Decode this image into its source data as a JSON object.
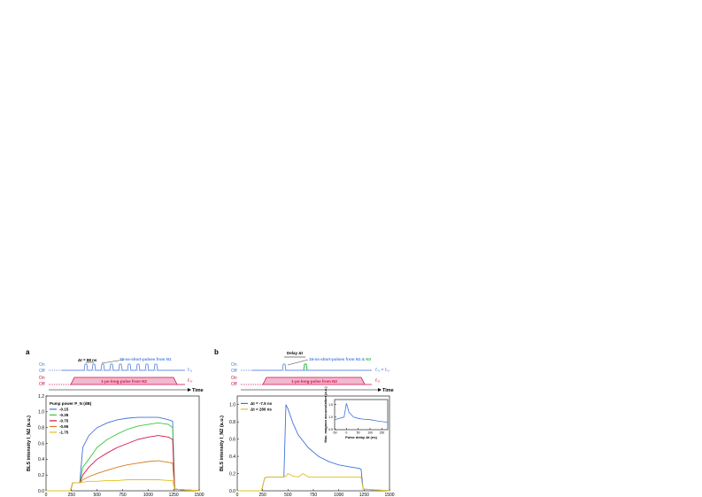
{
  "panel_a": {
    "letter": "a",
    "pulse_diagram": {
      "on_label": "On",
      "off_label": "Off",
      "delta_t_label": "Δt = 88 ns",
      "short_pulse_label": "15-ns-short-pulses from N1",
      "long_pulse_label": "1-μs-long-pulse from N2",
      "f_n1": "fₙ₁",
      "f_n2": "fₙ₂",
      "time_label": "Time",
      "colors": {
        "short": "#4a7fe0",
        "long": "#d0144a",
        "long_fill": "#f2b8cf"
      }
    }
  },
  "panel_b": {
    "letter": "b",
    "pulse_diagram": {
      "on_label": "On",
      "off_label": "Off",
      "delay_label": "Delay Δt",
      "short_pulse_label": "15-ns-short-pulses from N1 & ",
      "short_pulse_label_n3": "N3",
      "long_pulse_label": "1-μs-long-pulse from N2",
      "f_n1": "fₙ₁ = fₙ₃",
      "f_n2": "fₙ₂",
      "time_label": "Time",
      "colors": {
        "short": "#4a7fe0",
        "n3": "#2fb84a",
        "long": "#d0144a",
        "long_fill": "#f2b8cf"
      }
    },
    "inset": {
      "xlabel": "Pulse delay Δt (ns)",
      "ylabel": "Max. magnon accumulation (a.u.)",
      "x_ticks": [
        "-50",
        "0",
        "50",
        "100",
        "150"
      ],
      "y_ticks": [
        "0.5",
        "1.0",
        "1.5"
      ]
    }
  },
  "chart_data": [
    {
      "type": "line",
      "panel": "a",
      "xlabel": "Time t (ns)",
      "ylabel": "BLS intensity I_N2 (a.u.)",
      "xlim": [
        0,
        1500
      ],
      "ylim": [
        0,
        1.2
      ],
      "x_ticks": [
        0,
        250,
        500,
        750,
        1000,
        1250,
        1500
      ],
      "y_ticks": [
        0.0,
        0.2,
        0.4,
        0.6,
        0.8,
        1.0,
        1.2
      ],
      "legend_title": "Pump power P_N (dB)",
      "legend_position": "top-left",
      "series": [
        {
          "name": "-0.15",
          "color": "#3f73d9",
          "x": [
            0,
            240,
            260,
            330,
            360,
            420,
            500,
            600,
            700,
            800,
            900,
            1000,
            1100,
            1200,
            1240,
            1260,
            1500
          ],
          "y": [
            0,
            0,
            0.1,
            0.1,
            0.55,
            0.7,
            0.8,
            0.86,
            0.9,
            0.92,
            0.93,
            0.93,
            0.93,
            0.9,
            0.88,
            0.02,
            0
          ]
        },
        {
          "name": "-0.35",
          "color": "#3cc63c",
          "x": [
            0,
            240,
            260,
            330,
            360,
            420,
            500,
            600,
            700,
            800,
            900,
            1000,
            1100,
            1200,
            1240,
            1260,
            1500
          ],
          "y": [
            0,
            0,
            0.1,
            0.1,
            0.3,
            0.4,
            0.55,
            0.65,
            0.72,
            0.78,
            0.82,
            0.84,
            0.86,
            0.84,
            0.8,
            0.02,
            0
          ]
        },
        {
          "name": "-0.75",
          "color": "#d0144a",
          "x": [
            0,
            240,
            260,
            330,
            360,
            420,
            500,
            600,
            700,
            800,
            900,
            1000,
            1100,
            1200,
            1240,
            1260,
            1500
          ],
          "y": [
            0,
            0,
            0.1,
            0.1,
            0.2,
            0.3,
            0.4,
            0.48,
            0.55,
            0.6,
            0.65,
            0.68,
            0.7,
            0.68,
            0.65,
            0.02,
            0
          ]
        },
        {
          "name": "-0.95",
          "color": "#d97a1e",
          "x": [
            0,
            240,
            260,
            330,
            360,
            420,
            500,
            600,
            700,
            800,
            900,
            1000,
            1100,
            1200,
            1240,
            1260,
            1500
          ],
          "y": [
            0,
            0,
            0.1,
            0.1,
            0.14,
            0.18,
            0.22,
            0.26,
            0.3,
            0.33,
            0.35,
            0.37,
            0.38,
            0.36,
            0.35,
            0.02,
            0
          ]
        },
        {
          "name": "-1.75",
          "color": "#e0c01e",
          "x": [
            0,
            240,
            260,
            330,
            360,
            420,
            500,
            600,
            700,
            800,
            900,
            1000,
            1100,
            1200,
            1240,
            1260,
            1500
          ],
          "y": [
            0,
            0,
            0.1,
            0.1,
            0.11,
            0.12,
            0.12,
            0.13,
            0.13,
            0.14,
            0.14,
            0.14,
            0.14,
            0.13,
            0.13,
            0.02,
            0
          ]
        }
      ]
    },
    {
      "type": "line",
      "panel": "b",
      "xlabel": "Time t (ns)",
      "ylabel": "BLS intensity I_N2 (a.u.)",
      "xlim": [
        0,
        1500
      ],
      "ylim": [
        0,
        1.1
      ],
      "x_ticks": [
        0,
        250,
        500,
        750,
        1000,
        1250,
        1500
      ],
      "y_ticks": [
        0.0,
        0.2,
        0.4,
        0.6,
        0.8,
        1.0
      ],
      "legend_position": "top-left",
      "series": [
        {
          "name": "Δt = -7.5 ns",
          "color": "#3f73d9",
          "x": [
            0,
            240,
            270,
            300,
            460,
            480,
            500,
            550,
            600,
            700,
            800,
            900,
            1000,
            1100,
            1200,
            1220,
            1240,
            1500
          ],
          "y": [
            0,
            0,
            0.15,
            0.16,
            0.16,
            1.0,
            0.95,
            0.78,
            0.65,
            0.5,
            0.4,
            0.34,
            0.3,
            0.28,
            0.26,
            0.25,
            0.02,
            0
          ]
        },
        {
          "name": "Δt = 280 ns",
          "color": "#e0c01e",
          "x": [
            0,
            240,
            270,
            300,
            460,
            480,
            500,
            550,
            600,
            650,
            700,
            800,
            900,
            1000,
            1100,
            1200,
            1220,
            1240,
            1500
          ],
          "y": [
            0,
            0,
            0.15,
            0.16,
            0.16,
            0.17,
            0.2,
            0.17,
            0.16,
            0.2,
            0.16,
            0.16,
            0.16,
            0.16,
            0.16,
            0.16,
            0.16,
            0.02,
            0
          ]
        }
      ],
      "inset_chart": {
        "type": "line",
        "xlim": [
          -50,
          175
        ],
        "ylim": [
          0.5,
          1.7
        ],
        "series": [
          {
            "name": "",
            "color": "#3f73d9",
            "x": [
              -50,
              -30,
              -10,
              0,
              5,
              10,
              20,
              30,
              50,
              70,
              100,
              130,
              150,
              175
            ],
            "y": [
              0.9,
              0.95,
              1.0,
              1.55,
              1.4,
              1.2,
              1.1,
              1.0,
              0.95,
              0.92,
              0.9,
              0.85,
              0.82,
              0.8
            ]
          }
        ]
      }
    }
  ]
}
